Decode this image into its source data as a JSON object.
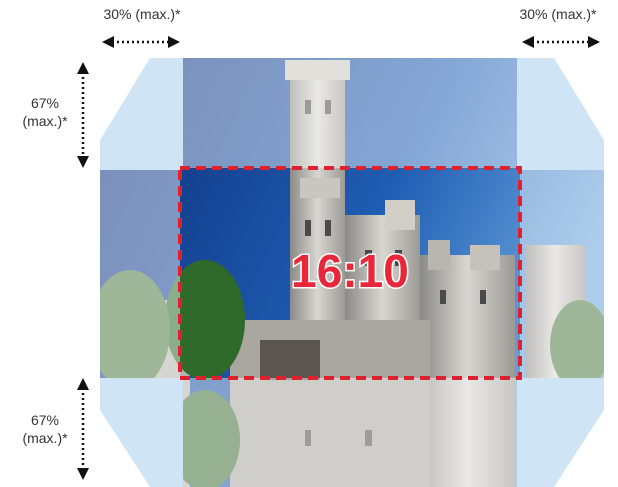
{
  "annotations": {
    "top_left": "30% (max.)*",
    "top_right": "30% (max.)*",
    "left_top": [
      "67%",
      "(max.)*"
    ],
    "left_bottom": [
      "67%",
      "(max.)*"
    ]
  },
  "center_label": "16:10"
}
